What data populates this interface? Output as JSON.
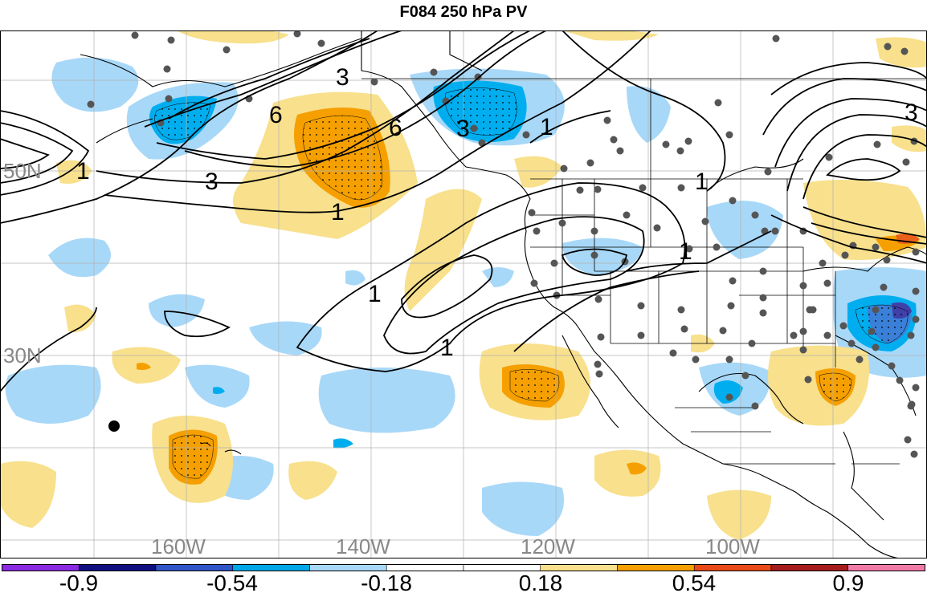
{
  "title": "F084 250 hPa PV",
  "map": {
    "lat_labels": [
      "50N",
      "30N"
    ],
    "lon_labels": [
      "160W",
      "140W",
      "120W",
      "100W"
    ],
    "contour_labels": [
      "1",
      "3",
      "6",
      "6",
      "3",
      "3",
      "1",
      "1",
      "1",
      "1",
      "1",
      "3"
    ]
  },
  "colorbar": {
    "colors": [
      "#8a2be2",
      "#101080",
      "#3055c8",
      "#00a8e8",
      "#a8d8f8",
      "#ffffff",
      "#ffffff",
      "#f8e08c",
      "#f5a000",
      "#e84a1a",
      "#a51c1c",
      "#f27aa8"
    ],
    "labels": [
      "-0.9",
      "-0.54",
      "-0.18",
      "0.18",
      "0.54",
      "0.9"
    ]
  },
  "palette": {
    "light_blue": "#a8d8f8",
    "cyan": "#00aeef",
    "mid_blue": "#3a7fd8",
    "dark_blue": "#4040a8",
    "light_yellow": "#f8e08c",
    "orange": "#f5a000",
    "red_orange": "#e8601a",
    "station": "#555555",
    "land_line": "#000000",
    "grid": "#b0b0b0"
  }
}
